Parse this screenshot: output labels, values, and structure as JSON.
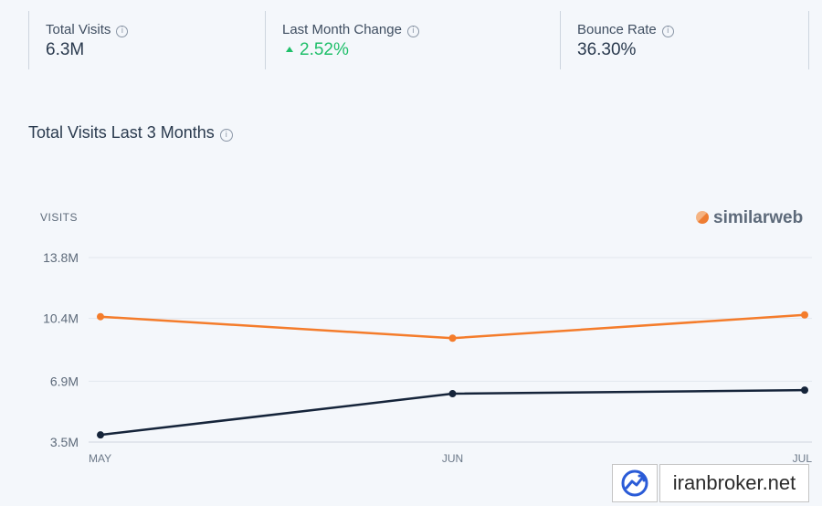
{
  "metrics": {
    "total_visits": {
      "label": "Total Visits",
      "value": "6.3M"
    },
    "last_month_change": {
      "label": "Last Month Change",
      "value": "2.52%",
      "direction": "up"
    },
    "bounce_rate": {
      "label": "Bounce Rate",
      "value": "36.30%"
    }
  },
  "info_icon": "i",
  "chart_title": "Total Visits Last 3 Months",
  "brand": "similarweb",
  "watermark": "iranbroker.net",
  "colors": {
    "series_1": "#f47c2b",
    "series_2": "#15243a",
    "positive": "#1fbf6a",
    "grid": "#e2e7ee"
  },
  "chart_data": {
    "type": "line",
    "ylabel": "VISITS",
    "x": [
      "MAY",
      "JUN",
      "JUL"
    ],
    "yticks": [
      "3.5M",
      "6.9M",
      "10.4M",
      "13.8M"
    ],
    "ytick_values": [
      3.5,
      6.9,
      10.4,
      13.8
    ],
    "ylim": [
      3.5,
      13.8
    ],
    "grid": true,
    "series": [
      {
        "values": [
          10.5,
          9.3,
          10.6
        ]
      },
      {
        "values": [
          3.9,
          6.2,
          6.4
        ]
      }
    ]
  }
}
